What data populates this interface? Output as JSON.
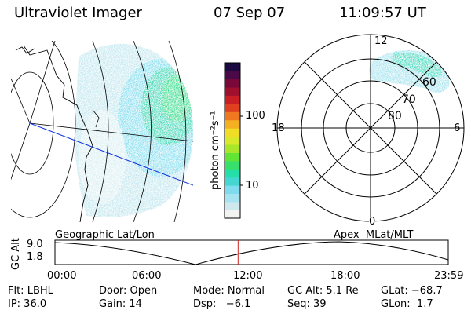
{
  "header": {
    "title": "Ultraviolet Imager",
    "date": "07 Sep 07",
    "time": "11:09:57 UT"
  },
  "colorbar": {
    "unit_label": "photon cm⁻²s⁻¹",
    "ticks": [
      "100",
      "10"
    ],
    "colors": [
      "#f2f2f2",
      "#cfe8ee",
      "#a8e4ef",
      "#7fdcee",
      "#44d6d0",
      "#24e0a8",
      "#36e06a",
      "#62e436",
      "#a8e62a",
      "#d8e82a",
      "#f2dd26",
      "#f4b020",
      "#f07820",
      "#e04020",
      "#c81e24",
      "#a0102c",
      "#7a0838",
      "#4a0a48",
      "#1a0a40"
    ]
  },
  "panels": {
    "left_label": "Geographic Lat/Lon",
    "right_label": "Apex  MLat/MLT"
  },
  "polar": {
    "ring_labels": [
      "60",
      "70",
      "80"
    ],
    "clock_labels": [
      "12",
      "18",
      "6",
      "0"
    ]
  },
  "timeline": {
    "ylabel": "GC Alt",
    "yticks": [
      "9.0",
      "1.8"
    ],
    "xticks": [
      "00:00",
      "06:00",
      "12:00",
      "18:00",
      "23:59"
    ],
    "current_marker_hours": 11.17
  },
  "status": {
    "row1": [
      "Flt: LBHL",
      "Door: Open",
      "Mode: Normal",
      "GC Alt: 5.1 Re",
      "GLat: −68.7"
    ],
    "row2": [
      "IP: 36.0",
      "Gain: 14",
      "Dsp:   −6.1",
      "Seq: 39",
      "GLon:  1.7"
    ]
  },
  "accent_colors": {
    "marker": "#d02020",
    "track": "#1030e0"
  }
}
